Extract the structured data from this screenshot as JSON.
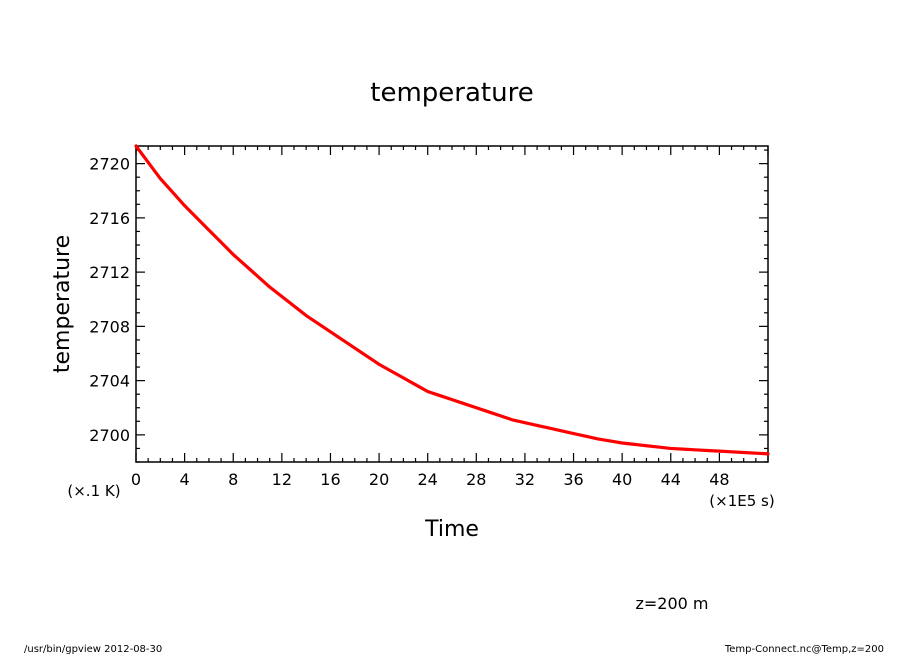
{
  "chart_data": {
    "type": "line",
    "title": "temperature",
    "xlabel": "Time",
    "ylabel": "temperature",
    "x_unit_label": "(×1E5 s)",
    "y_unit_label": "(×.1 K)",
    "xlim": [
      0,
      52
    ],
    "ylim": [
      2698,
      2721.3
    ],
    "x_ticks": [
      0,
      4,
      8,
      12,
      16,
      20,
      24,
      28,
      32,
      36,
      40,
      44,
      48
    ],
    "x_tick_labels": [
      "0",
      "4",
      "8",
      "12",
      "16",
      "20",
      "24",
      "28",
      "32",
      "36",
      "40",
      "44",
      "48"
    ],
    "y_ticks": [
      2700,
      2704,
      2708,
      2712,
      2716,
      2720
    ],
    "y_tick_labels": [
      "2700",
      "2704",
      "2708",
      "2712",
      "2716",
      "2720"
    ],
    "grid": false,
    "series": [
      {
        "color": "#ff0000",
        "x": [
          0,
          1,
          2,
          3,
          4,
          5,
          6,
          7,
          8,
          9,
          10,
          11,
          12,
          13,
          14,
          15,
          16,
          17,
          18,
          19,
          20,
          21,
          22,
          23,
          24,
          25,
          26,
          27,
          28,
          29,
          30,
          31,
          32,
          33,
          34,
          35,
          36,
          37,
          38,
          39,
          40,
          41,
          42,
          43,
          44,
          45,
          46,
          47,
          48,
          49,
          50,
          51,
          52
        ],
        "y": [
          2721.3,
          2720.1,
          2718.9,
          2717.9,
          2716.9,
          2716.0,
          2715.1,
          2714.2,
          2713.3,
          2712.5,
          2711.7,
          2710.9,
          2710.2,
          2709.5,
          2708.8,
          2708.2,
          2707.6,
          2707.0,
          2706.4,
          2705.8,
          2705.2,
          2704.7,
          2704.2,
          2703.7,
          2703.2,
          2702.9,
          2702.6,
          2702.3,
          2702.0,
          2701.7,
          2701.4,
          2701.1,
          2700.9,
          2700.7,
          2700.5,
          2700.3,
          2700.1,
          2699.9,
          2699.7,
          2699.55,
          2699.4,
          2699.3,
          2699.2,
          2699.1,
          2699.0,
          2698.95,
          2698.9,
          2698.85,
          2698.8,
          2698.75,
          2698.7,
          2698.65,
          2698.6
        ]
      }
    ]
  },
  "annotation": "z=200 m",
  "footer": {
    "left": "/usr/bin/gpview  2012-08-30",
    "right": "Temp-Connect.nc@Temp,z=200"
  }
}
